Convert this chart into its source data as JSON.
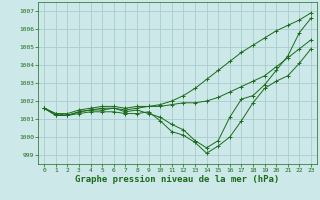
{
  "background_color": "#cce8e8",
  "grid_color": "#aacccc",
  "line_color": "#1a6b1a",
  "xlabel": "Graphe pression niveau de la mer (hPa)",
  "ylim": [
    998.5,
    1007.5
  ],
  "xlim": [
    -0.5,
    23.5
  ],
  "yticks": [
    999,
    1000,
    1001,
    1002,
    1003,
    1004,
    1005,
    1006,
    1007
  ],
  "xticks": [
    0,
    1,
    2,
    3,
    4,
    5,
    6,
    7,
    8,
    9,
    10,
    11,
    12,
    13,
    14,
    15,
    16,
    17,
    18,
    19,
    20,
    21,
    22,
    23
  ],
  "series": [
    [
      1001.6,
      1001.3,
      1001.2,
      1001.4,
      1001.5,
      1001.6,
      1001.6,
      1001.5,
      1001.6,
      1001.7,
      1001.8,
      1002.0,
      1002.3,
      1002.7,
      1003.2,
      1003.7,
      1004.2,
      1004.7,
      1005.1,
      1005.5,
      1005.9,
      1006.2,
      1006.5,
      1006.9
    ],
    [
      1001.6,
      1001.2,
      1001.2,
      1001.4,
      1001.5,
      1001.5,
      1001.6,
      1001.4,
      1001.5,
      1001.3,
      1001.1,
      1000.7,
      1000.4,
      999.8,
      999.4,
      999.8,
      1001.1,
      1002.1,
      1002.3,
      1002.9,
      1003.7,
      1004.5,
      1005.8,
      1006.6
    ],
    [
      1001.6,
      1001.2,
      1001.2,
      1001.3,
      1001.4,
      1001.4,
      1001.4,
      1001.3,
      1001.3,
      1001.4,
      1000.9,
      1000.3,
      1000.1,
      999.7,
      999.1,
      999.5,
      1000.0,
      1000.9,
      1001.9,
      1002.7,
      1003.1,
      1003.4,
      1004.1,
      1004.9
    ],
    [
      1001.6,
      1001.3,
      1001.3,
      1001.5,
      1001.6,
      1001.7,
      1001.7,
      1001.6,
      1001.7,
      1001.7,
      1001.7,
      1001.8,
      1001.9,
      1001.9,
      1002.0,
      1002.2,
      1002.5,
      1002.8,
      1003.1,
      1003.4,
      1003.9,
      1004.4,
      1004.9,
      1005.4
    ]
  ]
}
